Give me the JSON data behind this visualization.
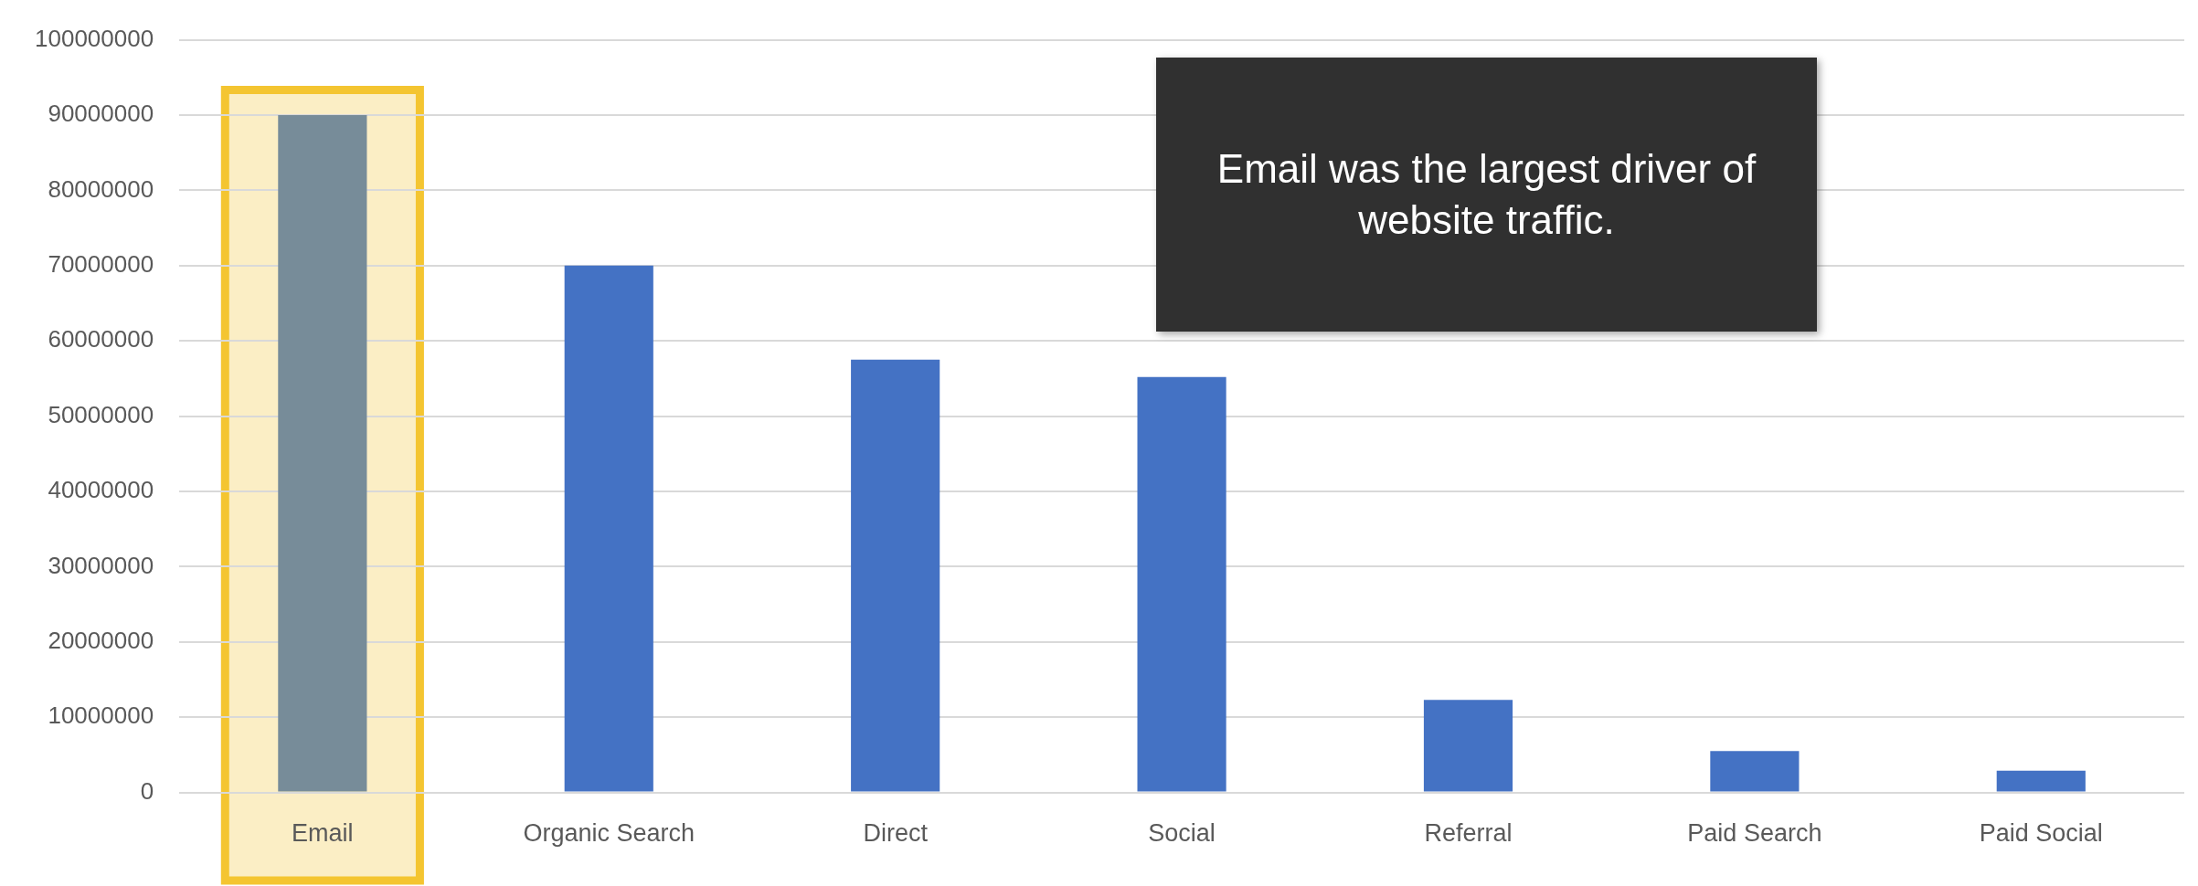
{
  "chart_data": {
    "type": "bar",
    "categories": [
      "Email",
      "Organic Search",
      "Direct",
      "Social",
      "Referral",
      "Paid Search",
      "Paid Social"
    ],
    "values": [
      90000000,
      70000000,
      57500000,
      55200000,
      12300000,
      5500000,
      2900000
    ],
    "colors": [
      "#778c99",
      "#4472c4",
      "#4472c4",
      "#4472c4",
      "#4472c4",
      "#4472c4",
      "#4472c4"
    ],
    "ylim": [
      0,
      100000000
    ],
    "yticks": [
      0,
      10000000,
      20000000,
      30000000,
      40000000,
      50000000,
      60000000,
      70000000,
      80000000,
      90000000,
      100000000
    ],
    "grid": "y",
    "legend": false,
    "bands": [
      {
        "axis": "x",
        "from": "Email",
        "to": "Email",
        "color": "#fbeec5"
      }
    ],
    "annotations": [
      "Email was the largest driver of website traffic."
    ]
  }
}
